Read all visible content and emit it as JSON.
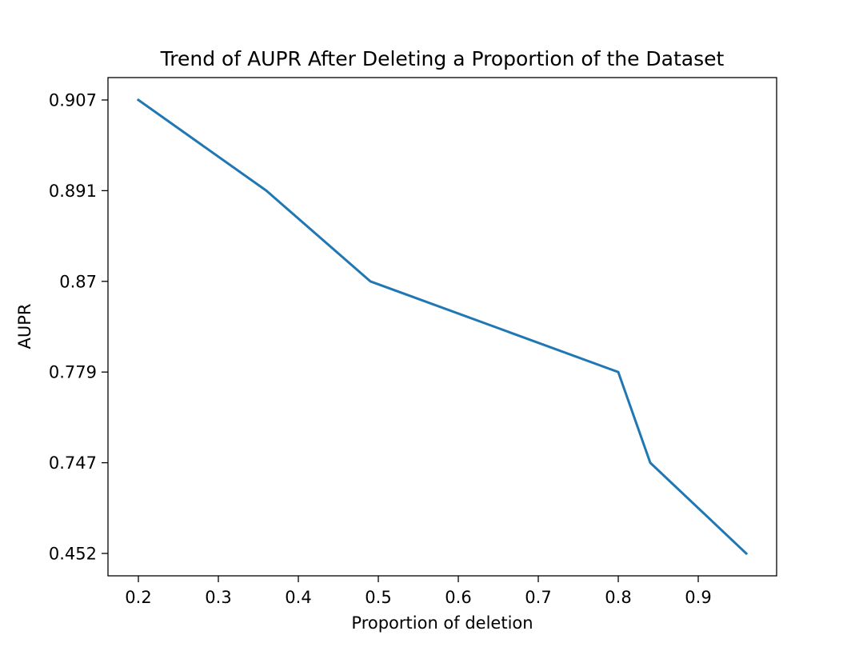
{
  "chart_data": {
    "type": "line",
    "title": "Trend of AUPR After Deleting a Proportion of the Dataset",
    "xlabel": "Proportion of deletion",
    "ylabel": "AUPR",
    "x_axis": {
      "type": "linear",
      "lim": [
        0.162,
        0.998
      ],
      "ticks": [
        0.2,
        0.3,
        0.4,
        0.5,
        0.6,
        0.7,
        0.8,
        0.9
      ],
      "tick_labels": [
        "0.2",
        "0.3",
        "0.4",
        "0.5",
        "0.6",
        "0.7",
        "0.8",
        "0.9"
      ]
    },
    "y_axis": {
      "type": "categorical",
      "ticks": [
        "0.907",
        "0.891",
        "0.87",
        "0.779",
        "0.747",
        "0.452"
      ],
      "note_order": "top-to-bottom, evenly spaced"
    },
    "series": [
      {
        "color": "#1f77b4",
        "points": [
          {
            "x": 0.2,
            "y": 0.907
          },
          {
            "x": 0.36,
            "y": 0.891
          },
          {
            "x": 0.49,
            "y": 0.87
          },
          {
            "x": 0.8,
            "y": 0.779
          },
          {
            "x": 0.84,
            "y": 0.747
          },
          {
            "x": 0.96,
            "y": 0.452
          }
        ]
      }
    ],
    "grid": false,
    "legend": "none"
  }
}
